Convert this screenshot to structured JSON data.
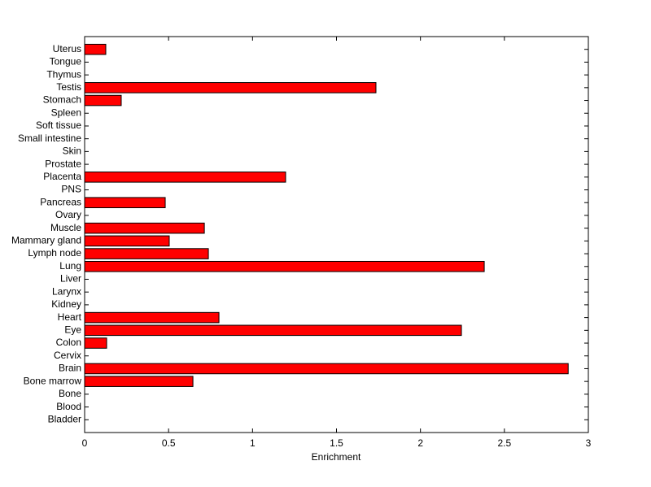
{
  "chart_data": {
    "type": "barh",
    "xlabel": "Enrichment",
    "categories": [
      "Bladder",
      "Blood",
      "Bone",
      "Bone marrow",
      "Brain",
      "Cervix",
      "Colon",
      "Eye",
      "Heart",
      "Kidney",
      "Larynx",
      "Liver",
      "Lung",
      "Lymph node",
      "Mammary gland",
      "Muscle",
      "Ovary",
      "Pancreas",
      "PNS",
      "Placenta",
      "Prostate",
      "Skin",
      "Small intestine",
      "Soft tissue",
      "Spleen",
      "Stomach",
      "Testis",
      "Thymus",
      "Tongue",
      "Uterus"
    ],
    "values": [
      0,
      0,
      0,
      0.645,
      2.88,
      0,
      0.131,
      2.244,
      0.8,
      0,
      0,
      0,
      2.38,
      0.737,
      0.504,
      0.713,
      0,
      0.48,
      0,
      1.197,
      0,
      0,
      0,
      0,
      0,
      0.218,
      1.735,
      0,
      0,
      0.126
    ],
    "color": "#ff0000",
    "xlim": [
      0,
      3
    ],
    "xticks": [
      0,
      0.5,
      1,
      1.5,
      2,
      2.5,
      3
    ]
  }
}
